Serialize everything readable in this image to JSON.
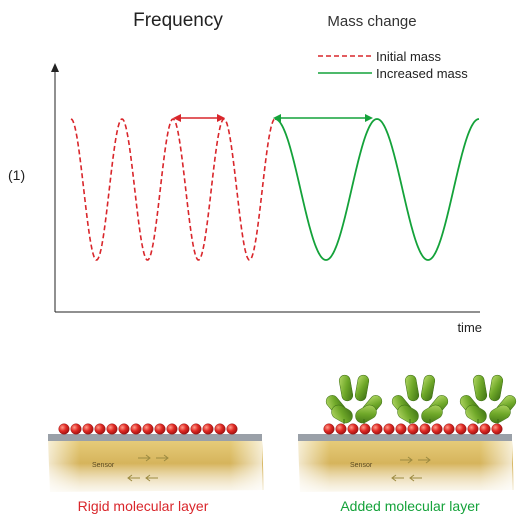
{
  "header": {
    "frequency_title": "Frequency",
    "mass_change_title": "Mass change"
  },
  "panel_label": "(1)",
  "legend": {
    "items": [
      {
        "label": "Initial mass",
        "color": "#d9262b",
        "style": "dashed"
      },
      {
        "label": "Increased mass",
        "color": "#14a23a",
        "style": "solid"
      }
    ]
  },
  "plot": {
    "x_axis_label": "time",
    "grid": false,
    "initial_mass": {
      "color": "#d9262b",
      "style": "dashed",
      "relative_period": 1
    },
    "increased_mass": {
      "color": "#14a23a",
      "style": "solid",
      "relative_period": 2
    },
    "period_markers": [
      {
        "series": "initial_mass",
        "color": "#d9262b"
      },
      {
        "series": "increased_mass",
        "color": "#14a23a"
      }
    ]
  },
  "sensors": [
    {
      "caption": "Rigid molecular layer",
      "caption_color": "#d9262b",
      "sensor_label": "Sensor",
      "has_added_layer": false
    },
    {
      "caption": "Added molecular layer",
      "caption_color": "#14a23a",
      "sensor_label": "Sensor",
      "has_added_layer": true
    }
  ],
  "colors": {
    "initial_mass": "#d9262b",
    "increased_mass": "#14a23a",
    "axis": "#222222",
    "sensor_body": "#d9b65e",
    "electrode": "#9aa0a8",
    "bead": "#d9262b",
    "antibody": "#6fa829"
  }
}
